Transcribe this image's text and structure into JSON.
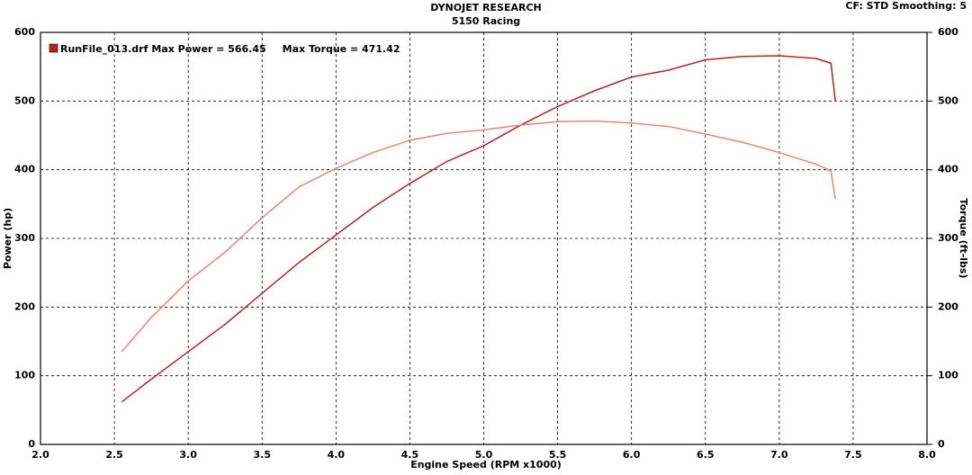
{
  "chart_data": {
    "type": "line",
    "title": "DYNOJET RESEARCH",
    "subtitle": "5150 Racing",
    "settings_label": "CF: STD  Smoothing: 5",
    "x_label": "Engine Speed (RPM x1000)",
    "y_label": "Power (hp)",
    "y2_label": "Torque (ft-lbs)",
    "annotations": [
      "Max Power = 566.45",
      "Max Torque = 471.42"
    ],
    "grid": true,
    "xlim": [
      2,
      8
    ],
    "xticks": [
      {
        "value": 2,
        "label": "2.0"
      },
      2.5,
      {
        "value": 3,
        "label": "3.0"
      },
      3.5,
      {
        "value": 4,
        "label": "4.0"
      },
      4.5,
      {
        "value": 5,
        "label": "5.0"
      },
      5.5,
      {
        "value": 6,
        "label": "6.0"
      },
      6.5,
      {
        "value": 7,
        "label": "7.0"
      },
      7.5,
      {
        "value": 8,
        "label": "8.0"
      }
    ],
    "ylim": [
      0,
      600
    ],
    "yticks": [
      0,
      100,
      200,
      300,
      400,
      500,
      600
    ],
    "y2lim": [
      0,
      600
    ],
    "y2ticks": [
      0,
      100,
      200,
      300,
      400,
      500,
      600
    ],
    "x": [
      2.55,
      2.75,
      3.0,
      3.25,
      3.5,
      3.75,
      4.0,
      4.25,
      4.5,
      4.75,
      5.0,
      5.25,
      5.5,
      5.75,
      6.0,
      6.25,
      6.5,
      6.75,
      7.0,
      7.25,
      7.35,
      7.38
    ],
    "series": [
      {
        "name": "RunFile_013.drf",
        "color": "#b3261e",
        "values": [
          62,
          95,
          135,
          175,
          220,
          265,
          305,
          345,
          380,
          412,
          435,
          465,
          492,
          515,
          535,
          545,
          560,
          565,
          566,
          562,
          555,
          500
        ]
      },
      {
        "color": "#e8857a",
        "axis": "y2",
        "values": [
          135,
          185,
          238,
          280,
          330,
          375,
          402,
          425,
          443,
          453,
          458,
          465,
          470,
          471,
          468,
          463,
          452,
          440,
          425,
          408,
          398,
          357
        ]
      }
    ]
  }
}
